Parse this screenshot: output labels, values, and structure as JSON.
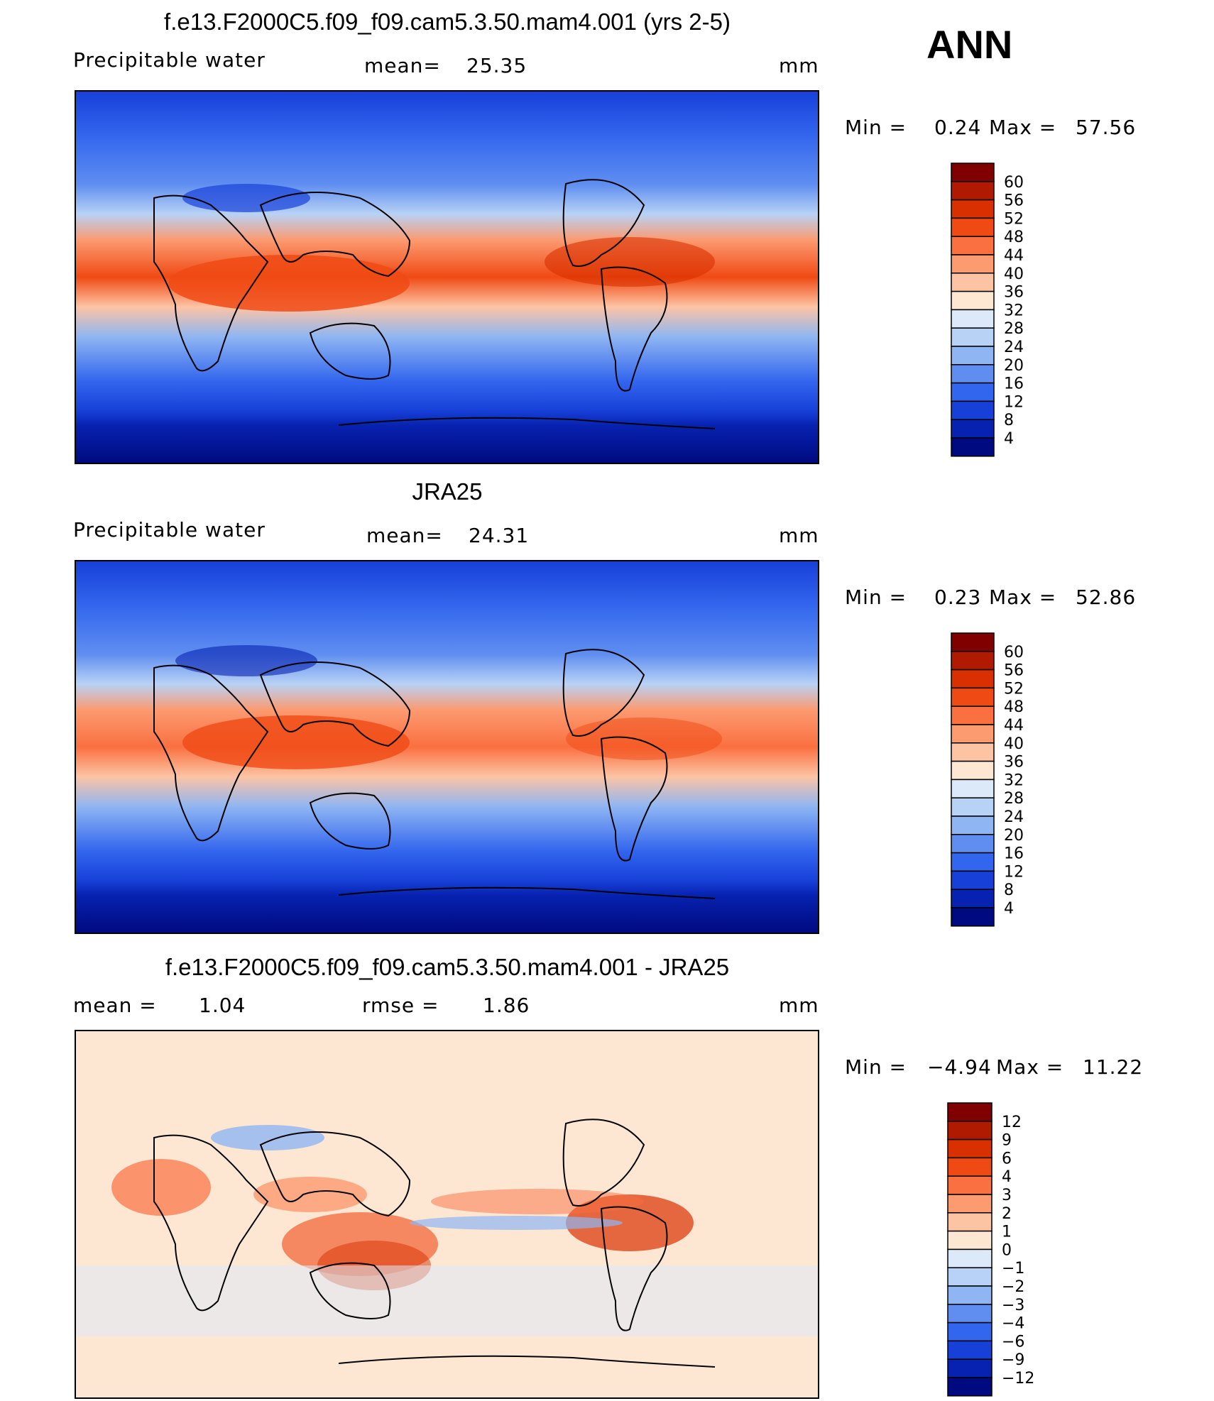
{
  "season": "ANN",
  "panels": [
    {
      "title": "f.e13.F2000C5.f09_f09.cam5.3.50.mam4.001 (yrs 2-5)",
      "left_label": "Precipitable water",
      "center_label": "mean=",
      "center_value": "25.35",
      "units": "mm",
      "min_label": "Min =",
      "min_value": "0.24",
      "max_label": "Max =",
      "max_value": "57.56",
      "colorbar_labels": [
        "60",
        "56",
        "52",
        "48",
        "44",
        "40",
        "36",
        "32",
        "28",
        "24",
        "20",
        "16",
        "12",
        "8",
        "4"
      ]
    },
    {
      "title": "JRA25",
      "left_label": "Precipitable water",
      "center_label": "mean=",
      "center_value": "24.31",
      "units": "mm",
      "min_label": "Min =",
      "min_value": "0.23",
      "max_label": "Max =",
      "max_value": "52.86",
      "colorbar_labels": [
        "60",
        "56",
        "52",
        "48",
        "44",
        "40",
        "36",
        "32",
        "28",
        "24",
        "20",
        "16",
        "12",
        "8",
        "4"
      ]
    },
    {
      "title": "f.e13.F2000C5.f09_f09.cam5.3.50.mam4.001 - JRA25",
      "left_label": "mean =",
      "left_value": "1.04",
      "center_label": "rmse =",
      "center_value": "1.86",
      "units": "mm",
      "min_label": "Min =",
      "min_value": "−4.94",
      "max_label": "Max =",
      "max_value": "11.22",
      "colorbar_labels": [
        "12",
        "9",
        "6",
        "4",
        "3",
        "2",
        "1",
        "0",
        "−1",
        "−2",
        "−3",
        "−4",
        "−6",
        "−9",
        "−12"
      ]
    }
  ],
  "colors": {
    "field_scale": [
      "#800000",
      "#b01a00",
      "#d83000",
      "#f04a14",
      "#fa7040",
      "#fc9a70",
      "#fdc4a4",
      "#fde6d2",
      "#dce9f8",
      "#b8d2f5",
      "#8fb6f2",
      "#5f8ef0",
      "#3366ee",
      "#1740d8",
      "#0722b0",
      "#000a80"
    ],
    "diff_scale": [
      "#800000",
      "#b01a00",
      "#d83000",
      "#f04a14",
      "#fa7040",
      "#fc9a70",
      "#fdc4a4",
      "#fde6d2",
      "#dce9f8",
      "#b8d2f5",
      "#8fb6f2",
      "#5f8ef0",
      "#3366ee",
      "#1740d8",
      "#0722b0",
      "#000a80"
    ]
  }
}
